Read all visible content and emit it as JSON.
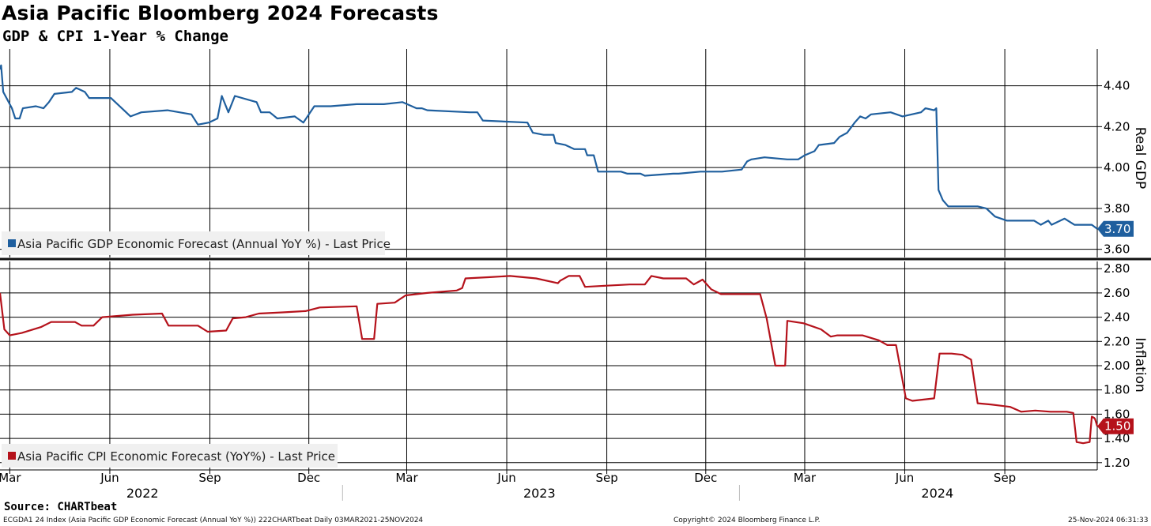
{
  "header": {
    "title": "Asia Pacific Bloomberg 2024 Forecasts",
    "subtitle": "GDP & CPI 1-Year % Change"
  },
  "footer": {
    "source": "Source: CHARTbeat",
    "left_note": "ECGDA1 24 Index (Asia Pacific GDP Economic Forecast (Annual YoY %)) 222CHARTbeat  Daily 03MAR2021-25NOV2024",
    "copyright": "Copyright© 2024 Bloomberg Finance L.P.",
    "timestamp": "25-Nov-2024 06:31:33"
  },
  "x_axis": {
    "months": [
      "Mar",
      "Jun",
      "Sep",
      "Dec",
      "Mar",
      "Jun",
      "Sep",
      "Dec",
      "Mar",
      "Jun",
      "Sep"
    ],
    "years": [
      "2022",
      "2023",
      "2024"
    ]
  },
  "colors": {
    "gdp": "#1f5f9e",
    "cpi": "#b5121b"
  },
  "chart_data": [
    {
      "type": "line",
      "ylabel": "Real GDP",
      "ylim": [
        3.56,
        4.58
      ],
      "yticks": [
        "3.60",
        "3.80",
        "4.00",
        "4.20",
        "4.40"
      ],
      "x_range": [
        "2022-02-20",
        "2024-11-25"
      ],
      "grid": true,
      "legend_position": "bottom-left",
      "last_value": "3.70",
      "series": [
        {
          "name": "Asia Pacific GDP Economic Forecast (Annual YoY %) - Last Price",
          "points": [
            [
              "2022-02-20",
              4.48
            ],
            [
              "2022-02-21",
              4.5
            ],
            [
              "2022-02-23",
              4.37
            ],
            [
              "2022-02-27",
              4.33
            ],
            [
              "2022-03-03",
              4.29
            ],
            [
              "2022-03-06",
              4.24
            ],
            [
              "2022-03-10",
              4.24
            ],
            [
              "2022-03-13",
              4.29
            ],
            [
              "2022-03-25",
              4.3
            ],
            [
              "2022-04-01",
              4.29
            ],
            [
              "2022-04-06",
              4.32
            ],
            [
              "2022-04-11",
              4.36
            ],
            [
              "2022-04-27",
              4.37
            ],
            [
              "2022-05-01",
              4.39
            ],
            [
              "2022-05-09",
              4.37
            ],
            [
              "2022-05-13",
              4.34
            ],
            [
              "2022-06-02",
              4.34
            ],
            [
              "2022-06-14",
              4.28
            ],
            [
              "2022-06-20",
              4.25
            ],
            [
              "2022-06-30",
              4.27
            ],
            [
              "2022-07-24",
              4.28
            ],
            [
              "2022-08-15",
              4.26
            ],
            [
              "2022-08-21",
              4.21
            ],
            [
              "2022-08-31",
              4.22
            ],
            [
              "2022-09-08",
              4.24
            ],
            [
              "2022-09-12",
              4.35
            ],
            [
              "2022-09-18",
              4.27
            ],
            [
              "2022-09-24",
              4.35
            ],
            [
              "2022-10-14",
              4.32
            ],
            [
              "2022-10-18",
              4.27
            ],
            [
              "2022-10-26",
              4.27
            ],
            [
              "2022-11-02",
              4.24
            ],
            [
              "2022-11-18",
              4.25
            ],
            [
              "2022-11-26",
              4.22
            ],
            [
              "2022-12-06",
              4.3
            ],
            [
              "2022-12-21",
              4.3
            ],
            [
              "2023-01-14",
              4.31
            ],
            [
              "2023-02-08",
              4.31
            ],
            [
              "2023-02-25",
              4.32
            ],
            [
              "2023-03-10",
              4.29
            ],
            [
              "2023-03-15",
              4.29
            ],
            [
              "2023-03-20",
              4.28
            ],
            [
              "2023-04-28",
              4.27
            ],
            [
              "2023-05-05",
              4.27
            ],
            [
              "2023-05-10",
              4.23
            ],
            [
              "2023-06-20",
              4.22
            ],
            [
              "2023-06-25",
              4.17
            ],
            [
              "2023-07-05",
              4.16
            ],
            [
              "2023-07-14",
              4.16
            ],
            [
              "2023-07-16",
              4.12
            ],
            [
              "2023-07-25",
              4.11
            ],
            [
              "2023-08-02",
              4.09
            ],
            [
              "2023-08-12",
              4.09
            ],
            [
              "2023-08-14",
              4.06
            ],
            [
              "2023-08-20",
              4.06
            ],
            [
              "2023-08-24",
              3.98
            ],
            [
              "2023-09-14",
              3.98
            ],
            [
              "2023-09-20",
              3.97
            ],
            [
              "2023-10-02",
              3.97
            ],
            [
              "2023-10-06",
              3.96
            ],
            [
              "2023-11-01",
              3.97
            ],
            [
              "2023-11-06",
              3.97
            ],
            [
              "2023-11-26",
              3.98
            ],
            [
              "2023-12-16",
              3.98
            ],
            [
              "2024-01-03",
              3.99
            ],
            [
              "2024-01-08",
              4.03
            ],
            [
              "2024-01-12",
              4.04
            ],
            [
              "2024-01-24",
              4.05
            ],
            [
              "2024-02-14",
              4.04
            ],
            [
              "2024-02-24",
              4.04
            ],
            [
              "2024-03-01",
              4.06
            ],
            [
              "2024-03-10",
              4.08
            ],
            [
              "2024-03-14",
              4.11
            ],
            [
              "2024-03-28",
              4.12
            ],
            [
              "2024-04-02",
              4.15
            ],
            [
              "2024-04-09",
              4.17
            ],
            [
              "2024-04-16",
              4.22
            ],
            [
              "2024-04-21",
              4.25
            ],
            [
              "2024-04-26",
              4.24
            ],
            [
              "2024-05-01",
              4.26
            ],
            [
              "2024-05-19",
              4.27
            ],
            [
              "2024-05-30",
              4.25
            ],
            [
              "2024-06-16",
              4.27
            ],
            [
              "2024-06-20",
              4.29
            ],
            [
              "2024-06-28",
              4.28
            ],
            [
              "2024-06-30",
              4.29
            ],
            [
              "2024-07-02",
              3.89
            ],
            [
              "2024-07-06",
              3.84
            ],
            [
              "2024-07-11",
              3.81
            ],
            [
              "2024-08-07",
              3.81
            ],
            [
              "2024-08-15",
              3.8
            ],
            [
              "2024-08-23",
              3.76
            ],
            [
              "2024-09-03",
              3.74
            ],
            [
              "2024-09-28",
              3.74
            ],
            [
              "2024-10-04",
              3.72
            ],
            [
              "2024-10-11",
              3.74
            ],
            [
              "2024-10-14",
              3.72
            ],
            [
              "2024-10-26",
              3.75
            ],
            [
              "2024-11-04",
              3.72
            ],
            [
              "2024-11-20",
              3.72
            ],
            [
              "2024-11-25",
              3.7
            ]
          ]
        }
      ]
    },
    {
      "type": "line",
      "ylabel": "Inflation",
      "ylim": [
        1.14,
        2.86
      ],
      "yticks": [
        "1.20",
        "1.40",
        "1.60",
        "1.80",
        "2.00",
        "2.20",
        "2.40",
        "2.60",
        "2.80"
      ],
      "x_range": [
        "2022-02-20",
        "2024-11-25"
      ],
      "grid": true,
      "legend_position": "bottom-left",
      "last_value": "1.50",
      "series": [
        {
          "name": "Asia Pacific CPI Economic Forecast (YoY%) - Last Price",
          "points": [
            [
              "2022-02-20",
              2.6
            ],
            [
              "2022-02-24",
              2.3
            ],
            [
              "2022-03-01",
              2.25
            ],
            [
              "2022-03-12",
              2.27
            ],
            [
              "2022-03-30",
              2.32
            ],
            [
              "2022-04-08",
              2.36
            ],
            [
              "2022-04-30",
              2.36
            ],
            [
              "2022-05-06",
              2.33
            ],
            [
              "2022-05-17",
              2.33
            ],
            [
              "2022-05-25",
              2.4
            ],
            [
              "2022-06-22",
              2.42
            ],
            [
              "2022-07-19",
              2.43
            ],
            [
              "2022-07-25",
              2.33
            ],
            [
              "2022-08-21",
              2.33
            ],
            [
              "2022-08-30",
              2.28
            ],
            [
              "2022-09-16",
              2.29
            ],
            [
              "2022-09-22",
              2.39
            ],
            [
              "2022-10-04",
              2.4
            ],
            [
              "2022-10-16",
              2.43
            ],
            [
              "2022-11-07",
              2.44
            ],
            [
              "2022-11-28",
              2.45
            ],
            [
              "2022-12-11",
              2.48
            ],
            [
              "2023-01-14",
              2.49
            ],
            [
              "2023-01-19",
              2.22
            ],
            [
              "2023-01-30",
              2.22
            ],
            [
              "2023-02-02",
              2.51
            ],
            [
              "2023-02-18",
              2.52
            ],
            [
              "2023-02-28",
              2.58
            ],
            [
              "2023-03-20",
              2.6
            ],
            [
              "2023-04-16",
              2.62
            ],
            [
              "2023-04-21",
              2.64
            ],
            [
              "2023-04-24",
              2.72
            ],
            [
              "2023-05-15",
              2.73
            ],
            [
              "2023-06-04",
              2.74
            ],
            [
              "2023-06-28",
              2.72
            ],
            [
              "2023-07-18",
              2.68
            ],
            [
              "2023-07-20",
              2.7
            ],
            [
              "2023-07-28",
              2.74
            ],
            [
              "2023-08-07",
              2.74
            ],
            [
              "2023-08-12",
              2.65
            ],
            [
              "2023-09-01",
              2.66
            ],
            [
              "2023-09-22",
              2.67
            ],
            [
              "2023-10-06",
              2.67
            ],
            [
              "2023-10-12",
              2.74
            ],
            [
              "2023-10-23",
              2.72
            ],
            [
              "2023-11-13",
              2.72
            ],
            [
              "2023-11-20",
              2.67
            ],
            [
              "2023-11-28",
              2.71
            ],
            [
              "2023-12-06",
              2.63
            ],
            [
              "2023-12-15",
              2.59
            ],
            [
              "2024-01-20",
              2.59
            ],
            [
              "2024-01-26",
              2.39
            ],
            [
              "2024-02-03",
              2.0
            ],
            [
              "2024-02-12",
              2.0
            ],
            [
              "2024-02-14",
              2.37
            ],
            [
              "2024-02-29",
              2.35
            ],
            [
              "2024-03-16",
              2.3
            ],
            [
              "2024-03-25",
              2.24
            ],
            [
              "2024-03-31",
              2.25
            ],
            [
              "2024-04-23",
              2.25
            ],
            [
              "2024-05-08",
              2.21
            ],
            [
              "2024-05-16",
              2.17
            ],
            [
              "2024-05-24",
              2.17
            ],
            [
              "2024-06-02",
              1.73
            ],
            [
              "2024-06-08",
              1.71
            ],
            [
              "2024-06-28",
              1.73
            ],
            [
              "2024-07-03",
              2.1
            ],
            [
              "2024-07-14",
              2.1
            ],
            [
              "2024-07-24",
              2.09
            ],
            [
              "2024-08-01",
              2.05
            ],
            [
              "2024-08-07",
              1.69
            ],
            [
              "2024-08-19",
              1.68
            ],
            [
              "2024-09-06",
              1.66
            ],
            [
              "2024-09-16",
              1.62
            ],
            [
              "2024-09-29",
              1.63
            ],
            [
              "2024-10-13",
              1.62
            ],
            [
              "2024-10-28",
              1.62
            ],
            [
              "2024-11-03",
              1.61
            ],
            [
              "2024-11-06",
              1.37
            ],
            [
              "2024-11-12",
              1.36
            ],
            [
              "2024-11-18",
              1.37
            ],
            [
              "2024-11-20",
              1.58
            ],
            [
              "2024-11-22",
              1.57
            ],
            [
              "2024-11-23",
              1.56
            ],
            [
              "2024-11-24",
              1.53
            ],
            [
              "2024-11-25",
              1.5
            ]
          ]
        }
      ]
    }
  ]
}
